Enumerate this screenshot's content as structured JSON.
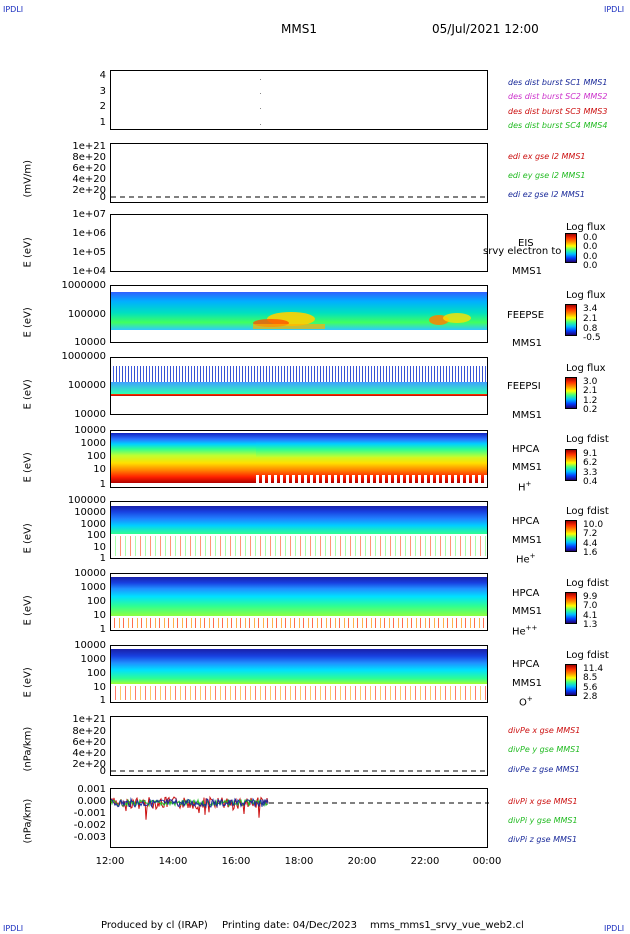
{
  "corner_label": "IPDLI",
  "header": {
    "spacecraft": "MMS1",
    "datetime": "05/Jul/2021 12:00"
  },
  "footer": {
    "produced_by": "Produced by cl (IRAP)",
    "printing_date": "Printing date: 04/Dec/2023",
    "script": "mms_mms1_srvy_vue_web2.cl"
  },
  "x_ticks": [
    "12:00",
    "14:00",
    "16:00",
    "18:00",
    "20:00",
    "22:00",
    "00:00"
  ],
  "chart_data": [
    {
      "type": "scatter",
      "ylabel": "",
      "yticks": [
        "4",
        "3",
        "2",
        "1"
      ],
      "ylim": [
        0.5,
        4.5
      ],
      "series": [
        {
          "name": "des dist burst SC1 MMS1"
        },
        {
          "name": "des dist burst SC2 MMS2"
        },
        {
          "name": "des dist burst SC3 MMS3"
        },
        {
          "name": "des dist burst SC4 MMS4"
        }
      ],
      "legend_colors": [
        "#1a2a9a",
        "#cc33cc",
        "#cc1111",
        "#22bb22"
      ]
    },
    {
      "type": "line",
      "ylabel": "(mV/m)",
      "yticks": [
        "1e+21",
        "8e+20",
        "6e+20",
        "4e+20",
        "2e+20",
        "0"
      ],
      "series": [
        {
          "name": "edi ex gse l2 MMS1"
        },
        {
          "name": "edi ey gse l2 MMS1"
        },
        {
          "name": "edi ez gse l2 MMS1"
        }
      ],
      "legend_colors": [
        "#cc1111",
        "#22bb22",
        "#1a2a9a"
      ]
    },
    {
      "type": "heatmap",
      "ylabel": "E (eV)",
      "yticks": [
        "1e+07",
        "1e+06",
        "1e+05",
        "1e+04"
      ],
      "yscale": "log",
      "instrument": "EIS",
      "spacecraft": "MMS1",
      "overlay_text": "srvy electron to",
      "colorbar": {
        "title": "Log flux",
        "values": [
          "0.0",
          "0.0",
          "0.0",
          "0.0"
        ]
      }
    },
    {
      "type": "heatmap",
      "ylabel": "E (eV)",
      "yticks": [
        "1000000",
        "100000",
        "10000"
      ],
      "yscale": "log",
      "instrument": "FEEPSE",
      "spacecraft": "MMS1",
      "colorbar": {
        "title": "Log flux",
        "values": [
          "3.4",
          "2.1",
          "0.8",
          "-0.5"
        ]
      }
    },
    {
      "type": "heatmap",
      "ylabel": "E (eV)",
      "yticks": [
        "1000000",
        "100000",
        "10000"
      ],
      "yscale": "log",
      "instrument": "FEEPSI",
      "spacecraft": "MMS1",
      "colorbar": {
        "title": "Log flux",
        "values": [
          "3.0",
          "2.1",
          "1.2",
          "0.2"
        ]
      }
    },
    {
      "type": "heatmap",
      "ylabel": "E (eV)",
      "yticks": [
        "10000",
        "1000",
        "100",
        "10",
        "1"
      ],
      "yscale": "log",
      "instrument": "HPCA",
      "spacecraft": "MMS1",
      "species": "H",
      "charge": "+",
      "colorbar": {
        "title": "Log fdist",
        "values": [
          "9.1",
          "6.2",
          "3.3",
          "0.4"
        ]
      }
    },
    {
      "type": "heatmap",
      "ylabel": "E (eV)",
      "yticks": [
        "100000",
        "10000",
        "1000",
        "100",
        "10",
        "1"
      ],
      "yscale": "log",
      "instrument": "HPCA",
      "spacecraft": "MMS1",
      "species": "He",
      "charge": "+",
      "colorbar": {
        "title": "Log fdist",
        "values": [
          "10.0",
          "7.2",
          "4.4",
          "1.6"
        ]
      }
    },
    {
      "type": "heatmap",
      "ylabel": "E (eV)",
      "yticks": [
        "10000",
        "1000",
        "100",
        "10",
        "1"
      ],
      "yscale": "log",
      "instrument": "HPCA",
      "spacecraft": "MMS1",
      "species": "He",
      "charge": "++",
      "colorbar": {
        "title": "Log fdist",
        "values": [
          "9.9",
          "7.0",
          "4.1",
          "1.3"
        ]
      }
    },
    {
      "type": "heatmap",
      "ylabel": "E (eV)",
      "yticks": [
        "10000",
        "1000",
        "100",
        "10",
        "1"
      ],
      "yscale": "log",
      "instrument": "HPCA",
      "spacecraft": "MMS1",
      "species": "O",
      "charge": "+",
      "colorbar": {
        "title": "Log fdist",
        "values": [
          "11.4",
          "8.5",
          "5.6",
          "2.8"
        ]
      }
    },
    {
      "type": "line",
      "ylabel": "(nPa/km)",
      "yticks": [
        "1e+21",
        "8e+20",
        "6e+20",
        "4e+20",
        "2e+20",
        "0"
      ],
      "series": [
        {
          "name": "divPe x gse MMS1"
        },
        {
          "name": "divPe y gse MMS1"
        },
        {
          "name": "divPe z gse MMS1"
        }
      ],
      "legend_colors": [
        "#cc1111",
        "#22bb22",
        "#1a2a9a"
      ]
    },
    {
      "type": "line",
      "ylabel": "(nPa/km)",
      "yticks": [
        "0.001",
        "0.000",
        "-0.001",
        "-0.002",
        "-0.003"
      ],
      "ylim": [
        -0.0035,
        0.0015
      ],
      "series": [
        {
          "name": "divPi x gse MMS1"
        },
        {
          "name": "divPi y gse MMS1"
        },
        {
          "name": "divPi z gse MMS1"
        }
      ],
      "legend_colors": [
        "#cc1111",
        "#22bb22",
        "#1a2a9a"
      ]
    }
  ]
}
